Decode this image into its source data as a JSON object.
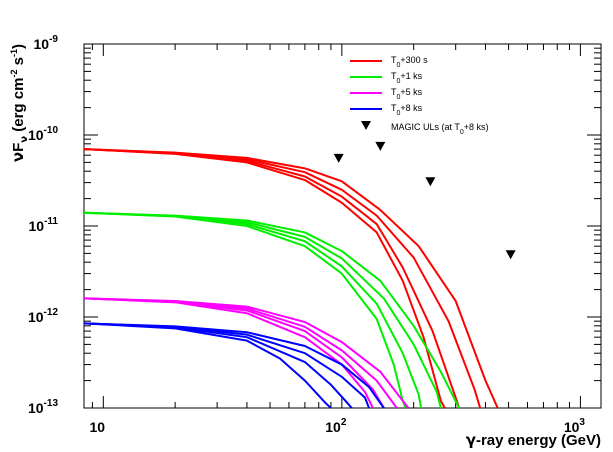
{
  "chart_data": {
    "type": "line",
    "xlabel_prefix": "γ",
    "xlabel_rest": "-ray energy (GeV)",
    "ylabel": {
      "nu": "ν",
      "F": "F",
      "sub": "ν",
      "unit_open": " (erg cm",
      "unit_exp1": "-2",
      "unit_mid": " s",
      "unit_exp2": "-1",
      "unit_close": ")"
    },
    "xscale": "log",
    "yscale": "log",
    "xlim": [
      8.3,
      1220
    ],
    "ylim": [
      1e-13,
      1e-09
    ],
    "grid": false,
    "x_ticks": [
      {
        "base": "10",
        "exp": ""
      },
      {
        "base": "10",
        "exp": "2"
      },
      {
        "base": "10",
        "exp": "3"
      }
    ],
    "y_ticks": [
      {
        "base": "10",
        "exp": "-13"
      },
      {
        "base": "10",
        "exp": "-12"
      },
      {
        "base": "10",
        "exp": "-11"
      },
      {
        "base": "10",
        "exp": "-10"
      },
      {
        "base": "10",
        "exp": "-9"
      }
    ],
    "legend_position": "top-right",
    "legend": [
      {
        "kind": "line",
        "color": "#ff0000",
        "pre": "T",
        "sub": "0",
        "post": "+300 s"
      },
      {
        "kind": "line",
        "color": "#00ee00",
        "pre": "T",
        "sub": "0",
        "post": "+1 ks"
      },
      {
        "kind": "line",
        "color": "#ff00ff",
        "pre": "T",
        "sub": "0",
        "post": "+5 ks"
      },
      {
        "kind": "line",
        "color": "#0000ff",
        "pre": "T",
        "sub": "0",
        "post": "+8 ks"
      },
      {
        "kind": "marker",
        "color": "#000000",
        "pre": "MAGIC ULs (at T",
        "sub": "0",
        "post": "+8 ks)"
      }
    ],
    "series": [
      {
        "color": "#ff0000",
        "lines": [
          [
            [
              8.3,
              7e-11
            ],
            [
              20,
              6.2e-11
            ],
            [
              40,
              5e-11
            ],
            [
              70,
              3.2e-11
            ],
            [
              100,
              1.8e-11
            ],
            [
              140,
              8.5e-12
            ],
            [
              180,
              2.5e-12
            ],
            [
              220,
              6e-13
            ],
            [
              260,
              1.2e-13
            ],
            [
              270,
              1e-13
            ]
          ],
          [
            [
              8.3,
              7e-11
            ],
            [
              20,
              6.3e-11
            ],
            [
              40,
              5.2e-11
            ],
            [
              70,
              3.5e-11
            ],
            [
              100,
              2.1e-11
            ],
            [
              140,
              1.05e-11
            ],
            [
              180,
              3.5e-12
            ],
            [
              240,
              7e-13
            ],
            [
              300,
              1.3e-13
            ],
            [
              310,
              1e-13
            ]
          ],
          [
            [
              8.3,
              7e-11
            ],
            [
              20,
              6.3e-11
            ],
            [
              40,
              5.4e-11
            ],
            [
              70,
              3.9e-11
            ],
            [
              100,
              2.5e-11
            ],
            [
              140,
              1.3e-11
            ],
            [
              200,
              4.5e-12
            ],
            [
              280,
              9e-13
            ],
            [
              360,
              1.6e-13
            ],
            [
              380,
              1e-13
            ]
          ],
          [
            [
              8.3,
              7e-11
            ],
            [
              20,
              6.4e-11
            ],
            [
              40,
              5.6e-11
            ],
            [
              70,
              4.3e-11
            ],
            [
              100,
              3.1e-11
            ],
            [
              145,
              1.5e-11
            ],
            [
              210,
              6e-12
            ],
            [
              300,
              1.5e-12
            ],
            [
              400,
              2e-13
            ],
            [
              450,
              1e-13
            ]
          ]
        ]
      },
      {
        "color": "#00ee00",
        "lines": [
          [
            [
              8.3,
              1.4e-11
            ],
            [
              20,
              1.27e-11
            ],
            [
              40,
              1e-11
            ],
            [
              70,
              6e-12
            ],
            [
              100,
              3e-12
            ],
            [
              140,
              9.5e-13
            ],
            [
              165,
              3e-13
            ],
            [
              180,
              1.2e-13
            ],
            [
              185,
              1e-13
            ]
          ],
          [
            [
              8.3,
              1.4e-11
            ],
            [
              20,
              1.28e-11
            ],
            [
              40,
              1.05e-11
            ],
            [
              70,
              6.8e-12
            ],
            [
              100,
              3.6e-12
            ],
            [
              140,
              1.4e-12
            ],
            [
              180,
              4e-13
            ],
            [
              210,
              1.4e-13
            ],
            [
              215,
              1e-13
            ]
          ],
          [
            [
              8.3,
              1.4e-11
            ],
            [
              20,
              1.29e-11
            ],
            [
              40,
              1.1e-11
            ],
            [
              70,
              7.6e-12
            ],
            [
              100,
              4.4e-12
            ],
            [
              150,
              1.6e-12
            ],
            [
              200,
              5e-13
            ],
            [
              250,
              1.5e-13
            ],
            [
              260,
              1e-13
            ]
          ],
          [
            [
              8.3,
              1.4e-11
            ],
            [
              20,
              1.3e-11
            ],
            [
              40,
              1.15e-11
            ],
            [
              70,
              8.5e-12
            ],
            [
              100,
              5.3e-12
            ],
            [
              145,
              2.5e-12
            ],
            [
              200,
              8e-13
            ],
            [
              260,
              2.5e-13
            ],
            [
              310,
              1e-13
            ]
          ]
        ]
      },
      {
        "color": "#ff00ff",
        "lines": [
          [
            [
              8.3,
              1.6e-12
            ],
            [
              20,
              1.45e-12
            ],
            [
              40,
              1.1e-12
            ],
            [
              70,
              6e-13
            ],
            [
              100,
              3e-13
            ],
            [
              125,
              1.5e-13
            ],
            [
              135,
              1e-13
            ]
          ],
          [
            [
              8.3,
              1.6e-12
            ],
            [
              20,
              1.47e-12
            ],
            [
              40,
              1.18e-12
            ],
            [
              70,
              7e-13
            ],
            [
              100,
              3.6e-13
            ],
            [
              135,
              1.6e-13
            ],
            [
              150,
              1e-13
            ]
          ],
          [
            [
              8.3,
              1.6e-12
            ],
            [
              20,
              1.48e-12
            ],
            [
              40,
              1.24e-12
            ],
            [
              70,
              7.8e-13
            ],
            [
              100,
              4.3e-13
            ],
            [
              140,
              2e-13
            ],
            [
              170,
              1e-13
            ]
          ],
          [
            [
              8.3,
              1.6e-12
            ],
            [
              20,
              1.5e-12
            ],
            [
              40,
              1.3e-12
            ],
            [
              70,
              8.8e-13
            ],
            [
              100,
              5.3e-13
            ],
            [
              145,
              2.5e-13
            ],
            [
              190,
              1e-13
            ]
          ]
        ]
      },
      {
        "color": "#0000ff",
        "lines": [
          [
            [
              8.3,
              8.5e-13
            ],
            [
              20,
              7.5e-13
            ],
            [
              40,
              5.5e-13
            ],
            [
              55,
              3.5e-13
            ],
            [
              70,
              2e-13
            ],
            [
              85,
              1.15e-13
            ],
            [
              90,
              1e-13
            ]
          ],
          [
            [
              8.3,
              8.5e-13
            ],
            [
              20,
              7.7e-13
            ],
            [
              40,
              6e-13
            ],
            [
              70,
              3.2e-13
            ],
            [
              90,
              1.8e-13
            ],
            [
              105,
              1.15e-13
            ],
            [
              110,
              1e-13
            ]
          ],
          [
            [
              8.3,
              8.5e-13
            ],
            [
              20,
              7.8e-13
            ],
            [
              40,
              6.4e-13
            ],
            [
              70,
              4e-13
            ],
            [
              100,
              2.2e-13
            ],
            [
              125,
              1.3e-13
            ],
            [
              130,
              1e-13
            ]
          ],
          [
            [
              8.3,
              8.5e-13
            ],
            [
              20,
              7.9e-13
            ],
            [
              40,
              6.8e-13
            ],
            [
              70,
              4.8e-13
            ],
            [
              100,
              3e-13
            ],
            [
              130,
              1.7e-13
            ],
            [
              150,
              1e-13
            ]
          ]
        ]
      }
    ],
    "upper_limits": [
      {
        "x": 97,
        "y": 5.6e-11
      },
      {
        "x": 145,
        "y": 7.6e-11
      },
      {
        "x": 235,
        "y": 3.1e-11
      },
      {
        "x": 510,
        "y": 4.9e-12
      }
    ]
  }
}
